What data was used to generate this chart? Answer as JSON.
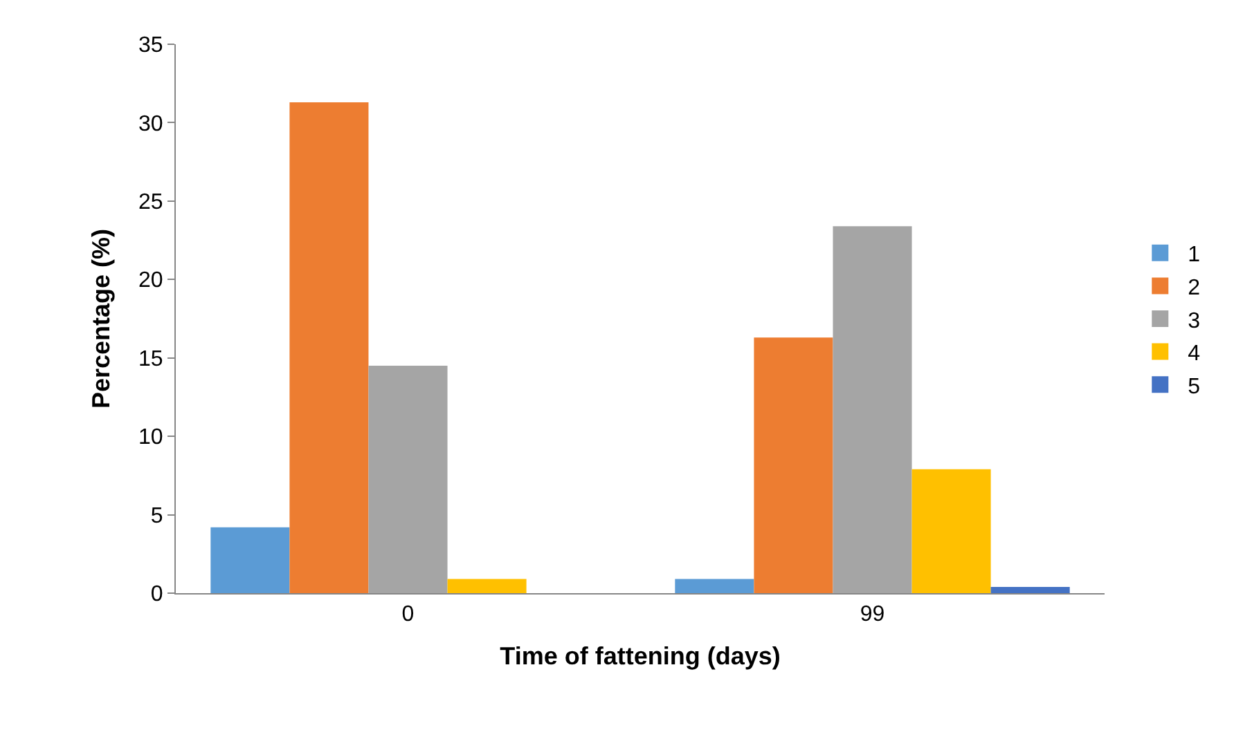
{
  "chart_data": {
    "type": "bar",
    "xlabel": "Time of fattening (days)",
    "ylabel": "Percentage (%)",
    "categories": [
      "0",
      "99"
    ],
    "series": [
      {
        "name": "1",
        "color": "#5b9bd5",
        "values": [
          4.2,
          0.9
        ]
      },
      {
        "name": "2",
        "color": "#ed7d31",
        "values": [
          31.3,
          16.3
        ]
      },
      {
        "name": "3",
        "color": "#a5a5a5",
        "values": [
          14.5,
          23.4
        ]
      },
      {
        "name": "4",
        "color": "#ffc000",
        "values": [
          0.9,
          7.9
        ]
      },
      {
        "name": "5",
        "color": "#4472c4",
        "values": [
          0,
          0.4
        ]
      }
    ],
    "ylim": [
      0,
      35
    ],
    "yticks": [
      0,
      5,
      10,
      15,
      20,
      25,
      30,
      35
    ],
    "legend": "right"
  }
}
